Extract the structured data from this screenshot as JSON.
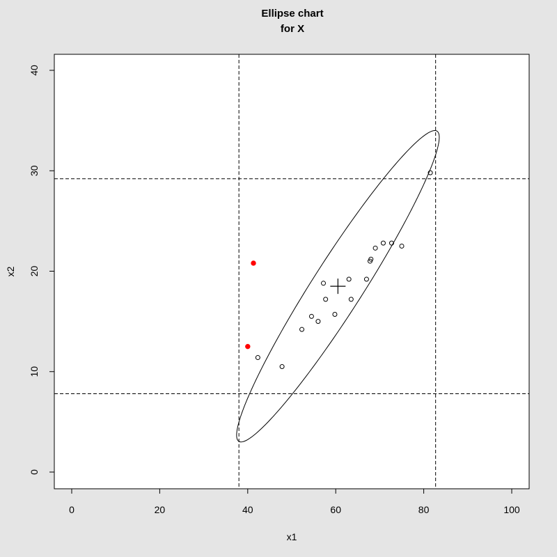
{
  "chart_data": {
    "type": "scatter",
    "title": "Ellipse chart",
    "subtitle": "for X",
    "xlabel": "x1",
    "ylabel": "x2",
    "xlim": [
      0,
      100
    ],
    "ylim": [
      0,
      40
    ],
    "x_ticks": [
      0,
      20,
      40,
      60,
      80,
      100
    ],
    "y_ticks": [
      0,
      10,
      20,
      30,
      40
    ],
    "grid": false,
    "points_in_control": [
      [
        42.3,
        11.4
      ],
      [
        47.8,
        10.5
      ],
      [
        52.3,
        14.2
      ],
      [
        54.5,
        15.5
      ],
      [
        56.0,
        15.0
      ],
      [
        57.2,
        18.8
      ],
      [
        57.7,
        17.2
      ],
      [
        59.8,
        15.7
      ],
      [
        63.0,
        19.2
      ],
      [
        63.5,
        17.2
      ],
      [
        67.0,
        19.2
      ],
      [
        67.8,
        21.0
      ],
      [
        68.0,
        21.2
      ],
      [
        69.0,
        22.3
      ],
      [
        70.8,
        22.8
      ],
      [
        72.7,
        22.8
      ],
      [
        75.0,
        22.5
      ],
      [
        81.5,
        29.8
      ]
    ],
    "points_out_of_control": [
      [
        41.3,
        20.8
      ],
      [
        40.0,
        12.5
      ]
    ],
    "center": [
      60.5,
      18.5
    ],
    "ellipse": {
      "center": [
        60.5,
        18.5
      ],
      "semi_axis_major": 27.5,
      "semi_axis_minor": 3.8,
      "angle_deg": 33.5
    },
    "control_limits": {
      "x1_lower": 38.0,
      "x1_upper": 82.7,
      "x2_lower": 7.8,
      "x2_upper": 29.2
    },
    "colors": {
      "in_control": "#000000",
      "out_of_control": "#ff0000",
      "ellipse": "#000000",
      "limit_lines": "#000000",
      "plot_background": "#ffffff",
      "page_background": "#e5e5e5"
    }
  }
}
